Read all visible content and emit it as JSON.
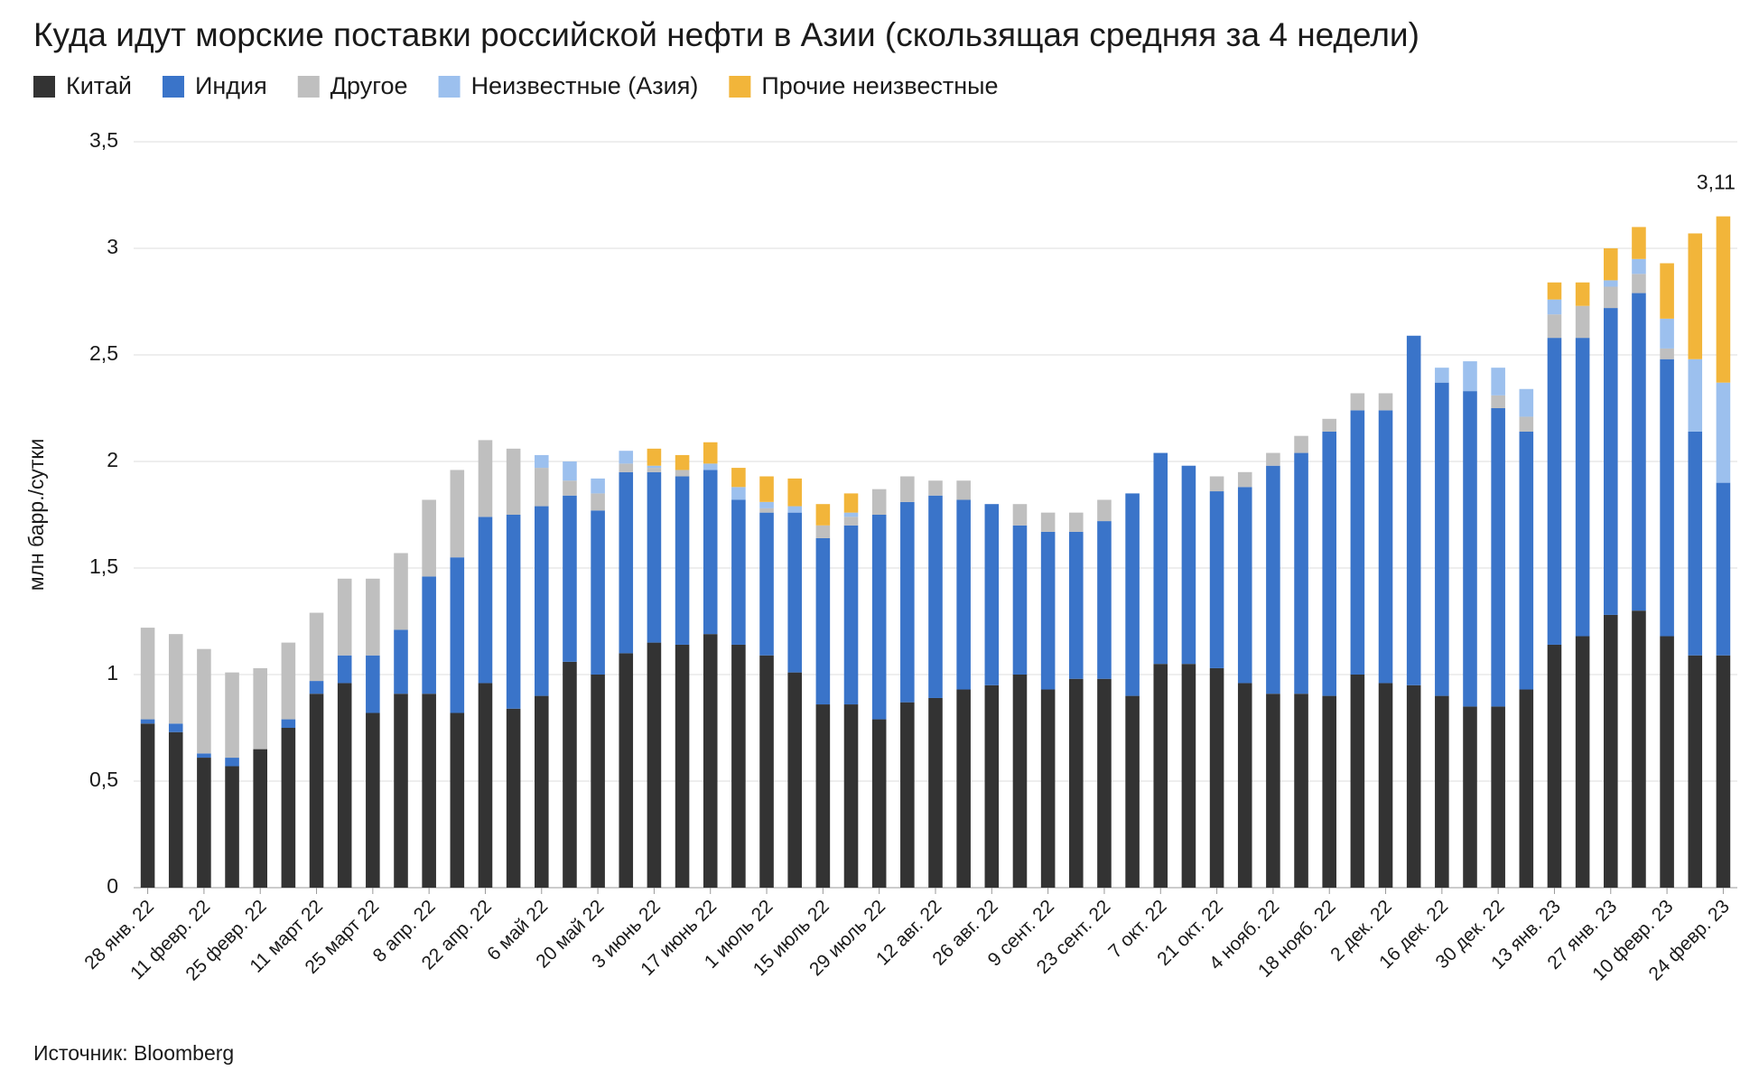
{
  "chart_data": {
    "type": "stacked_bar",
    "title": "Куда идут морские поставки российской нефти в Азии (скользящая средняя за 4 недели)",
    "y_label": "млн барр./сутки",
    "source": "Источник: Bloomberg",
    "annotation": "3,11",
    "categories": [
      "28 янв. 22",
      null,
      "11 февр. 22",
      null,
      "25 февр. 22",
      null,
      "11 март 22",
      null,
      "25 март 22",
      null,
      "8 апр. 22",
      null,
      "22 апр. 22",
      null,
      "6 май 22",
      null,
      "20 май 22",
      null,
      "3 июнь 22",
      null,
      "17 июнь 22",
      null,
      "1 июль 22",
      null,
      "15 июль 22",
      null,
      "29 июль 22",
      null,
      "12 авг. 22",
      null,
      "26 авг. 22",
      null,
      "9 сент. 22",
      null,
      "23 сент. 22",
      null,
      "7 окт. 22",
      null,
      "21 окт. 22",
      null,
      "4 нояб. 22",
      null,
      "18 нояб. 22",
      null,
      "2 дек. 22",
      null,
      "16 дек. 22",
      null,
      "30 дек. 22",
      null,
      "13 янв. 23",
      null,
      "27 янв. 23",
      null,
      "10 февр. 23",
      null,
      "24 февр. 23"
    ],
    "series": [
      {
        "name": "Китай",
        "color": "#333333",
        "values": [
          0.77,
          0.73,
          0.61,
          0.57,
          0.65,
          0.75,
          0.91,
          0.96,
          0.82,
          0.91,
          0.91,
          0.82,
          0.96,
          0.84,
          0.9,
          1.06,
          1.0,
          1.1,
          1.15,
          1.14,
          1.19,
          1.14,
          1.09,
          1.01,
          0.86,
          0.86,
          0.79,
          0.87,
          0.89,
          0.93,
          0.95,
          1.0,
          0.93,
          0.98,
          0.98,
          0.9,
          1.05,
          1.05,
          1.03,
          0.96,
          0.91,
          0.91,
          0.9,
          1.0,
          0.96,
          0.95,
          0.9,
          0.85,
          0.85,
          0.93,
          1.14,
          1.18,
          1.28,
          1.3,
          1.18,
          1.09,
          1.09
        ]
      },
      {
        "name": "Индия",
        "color": "#3a74c9",
        "values": [
          0.02,
          0.04,
          0.02,
          0.04,
          0,
          0.04,
          0.06,
          0.13,
          0.27,
          0.3,
          0.55,
          0.73,
          0.78,
          0.91,
          0.89,
          0.78,
          0.77,
          0.85,
          0.8,
          0.79,
          0.77,
          0.68,
          0.67,
          0.75,
          0.78,
          0.84,
          0.96,
          0.94,
          0.95,
          0.89,
          0.85,
          0.7,
          0.74,
          0.69,
          0.74,
          0.95,
          0.99,
          0.93,
          0.83,
          0.92,
          1.07,
          1.13,
          1.24,
          1.24,
          1.28,
          1.64,
          1.47,
          1.48,
          1.4,
          1.21,
          1.44,
          1.4,
          1.44,
          1.49,
          1.3,
          1.05,
          0.81
        ]
      },
      {
        "name": "Другое",
        "color": "#bfbfbf",
        "values": [
          0.43,
          0.42,
          0.49,
          0.4,
          0.38,
          0.36,
          0.32,
          0.36,
          0.36,
          0.36,
          0.36,
          0.41,
          0.36,
          0.31,
          0.18,
          0.07,
          0.08,
          0.04,
          0.02,
          0.03,
          0,
          0,
          0.02,
          0,
          0.06,
          0.04,
          0.12,
          0.12,
          0.07,
          0.09,
          0,
          0.1,
          0.09,
          0.09,
          0.1,
          0,
          0,
          0,
          0.07,
          0.07,
          0.06,
          0.08,
          0.06,
          0.08,
          0.08,
          0,
          0,
          0,
          0.06,
          0.07,
          0.11,
          0.15,
          0.1,
          0.09,
          0.05,
          0,
          0
        ]
      },
      {
        "name": "Неизвестные (Азия)",
        "color": "#9cc0ee",
        "values": [
          0,
          0,
          0,
          0,
          0,
          0,
          0,
          0,
          0,
          0,
          0,
          0,
          0,
          0,
          0.06,
          0.09,
          0.07,
          0.06,
          0.01,
          0,
          0.03,
          0.06,
          0.03,
          0.03,
          0,
          0.02,
          0,
          0,
          0,
          0,
          0,
          0,
          0,
          0,
          0,
          0,
          0,
          0,
          0,
          0,
          0,
          0,
          0,
          0,
          0,
          0,
          0.07,
          0.14,
          0.13,
          0.13,
          0.07,
          0,
          0.03,
          0.07,
          0.14,
          0.34,
          0.47
        ]
      },
      {
        "name": "Прочие неизвестные",
        "color": "#f2b53a",
        "values": [
          0,
          0,
          0,
          0,
          0,
          0,
          0,
          0,
          0,
          0,
          0,
          0,
          0,
          0,
          0,
          0,
          0,
          0,
          0.08,
          0.07,
          0.1,
          0.09,
          0.12,
          0.13,
          0.1,
          0.09,
          0,
          0,
          0,
          0,
          0,
          0,
          0,
          0,
          0,
          0,
          0,
          0,
          0,
          0,
          0,
          0,
          0,
          0,
          0,
          0,
          0,
          0,
          0,
          0,
          0.08,
          0.11,
          0.15,
          0.15,
          0.26,
          0.59,
          0.78
        ]
      }
    ],
    "ylim": [
      0,
      3.5
    ],
    "yticks": [
      0,
      {
        "value": 0.5,
        "label": "0,5"
      },
      1,
      {
        "value": 1.5,
        "label": "1,5"
      },
      2,
      {
        "value": 2.5,
        "label": "2,5"
      },
      3,
      {
        "value": 3.5,
        "label": "3,5"
      }
    ],
    "grid": true
  }
}
